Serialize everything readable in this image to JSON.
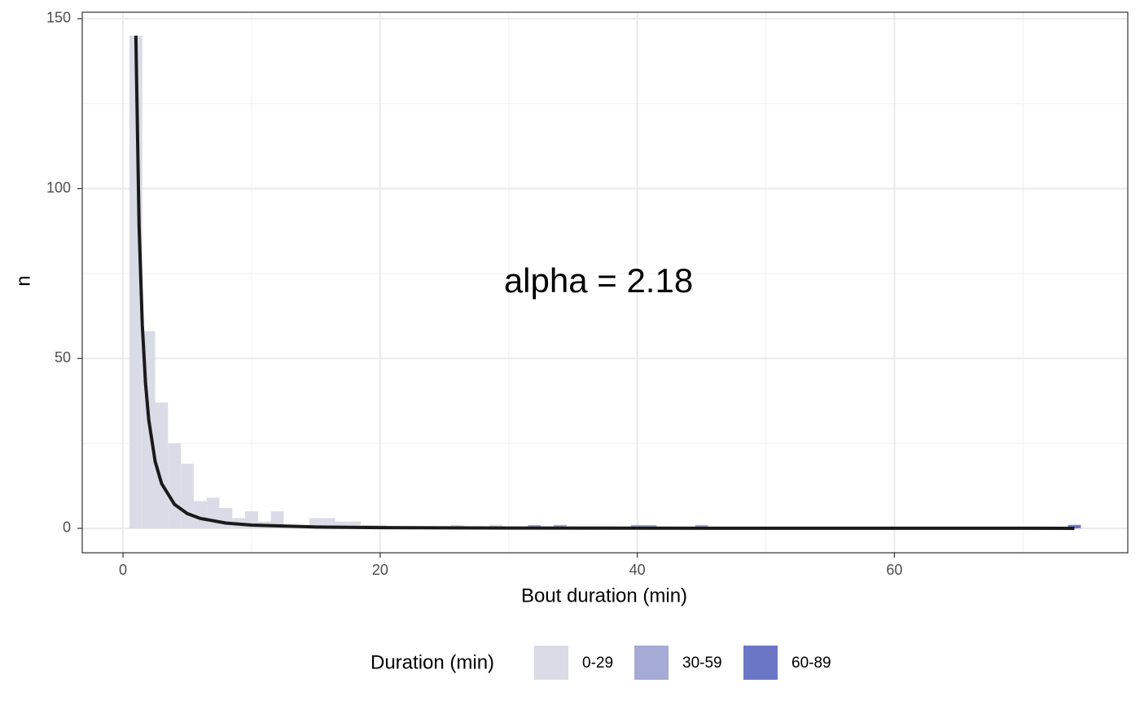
{
  "chart_data": {
    "type": "histogram",
    "x_label": "Bout duration (min)",
    "y_label": "n",
    "annotation": "alpha = 2.18",
    "legend_title": "Duration (min)",
    "legend_position": "bottom",
    "grid": true,
    "xlim": [
      -3.17,
      78.15
    ],
    "ylim": [
      -7.19,
      151.9
    ],
    "xticks": [
      0,
      20,
      40,
      60
    ],
    "yticks": [
      0,
      50,
      100,
      150
    ],
    "x_minor_grid": [
      10,
      30,
      50,
      70
    ],
    "y_minor_grid": [
      25,
      75,
      125
    ],
    "series": [
      {
        "name": "0-29",
        "color": "#d9dbe6",
        "bins": [
          0.5,
          1.5,
          2.5,
          3.5,
          4.5,
          5.5,
          6.5,
          7.5,
          8.5,
          9.5,
          10.5,
          11.5,
          12.5,
          13.5,
          14.5,
          15.5,
          16.5,
          17.5,
          18.5,
          19.5,
          20.5,
          21.5,
          22.5,
          23.5,
          24.5,
          25.5,
          26.5,
          27.5,
          28.5,
          29.5
        ],
        "values": [
          145,
          58,
          37,
          25,
          19,
          8,
          9,
          6,
          3,
          5,
          2,
          5,
          1,
          1,
          3,
          3,
          2,
          2,
          1,
          1,
          0,
          0,
          0,
          0,
          0,
          1,
          0,
          0,
          1
        ]
      },
      {
        "name": "30-59",
        "color": "#a5abd4",
        "bins": [
          31.5,
          32.5,
          33.5,
          34.5,
          35.5,
          36.5,
          37.5,
          38.5,
          39.5,
          40.5,
          41.5,
          42.5,
          43.5,
          44.5,
          45.5
        ],
        "values": [
          1,
          0,
          1,
          0,
          0,
          0,
          0,
          0,
          1,
          1,
          0,
          0,
          0,
          1
        ]
      },
      {
        "name": "60-89",
        "color": "#6b77c6",
        "bins": [
          73.5,
          74.5
        ],
        "values": [
          1
        ]
      }
    ],
    "curve": {
      "color": "#1a1a1a",
      "x": [
        1,
        1.25,
        1.5,
        1.75,
        2,
        2.5,
        3,
        4,
        5,
        6,
        8,
        10,
        15,
        20,
        30,
        40,
        50,
        60,
        74
      ],
      "y": [
        145,
        89.1,
        59.9,
        42.8,
        32.0,
        19.7,
        13.2,
        7.07,
        4.34,
        2.92,
        1.56,
        0.96,
        0.4,
        0.21,
        0.087,
        0.047,
        0.029,
        0.019,
        0.012
      ]
    }
  }
}
